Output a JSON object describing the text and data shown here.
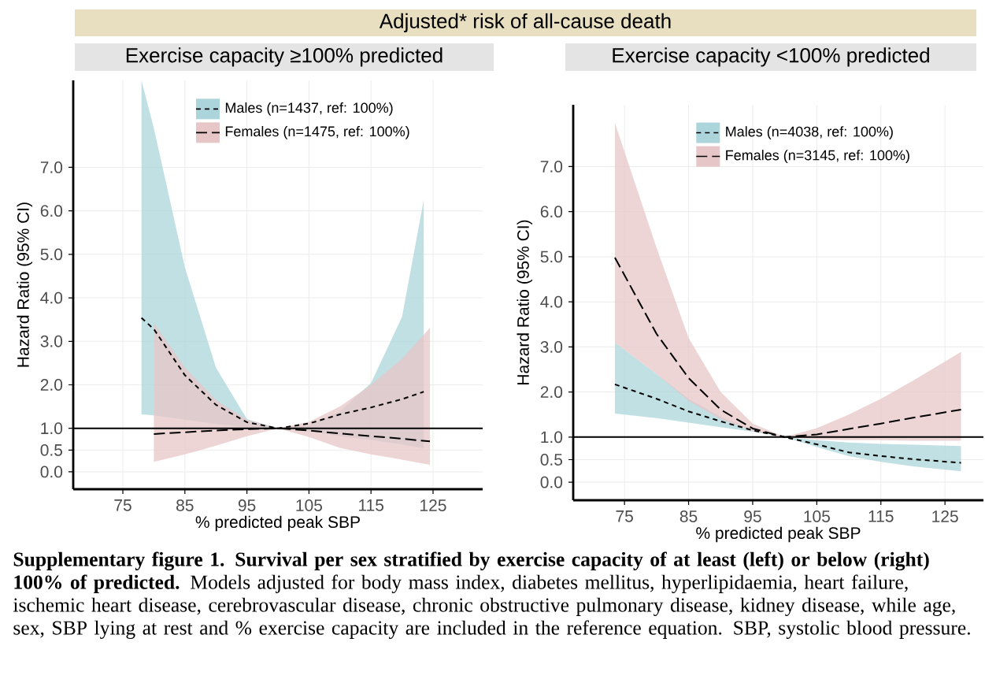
{
  "chart_data": [
    {
      "type": "line",
      "title": "Adjusted* risk of all-cause death",
      "subtitle": "Exercise capacity ≥100% predicted",
      "xlabel": "% predicted peak SBP",
      "ylabel": "Hazard Ratio (95% CI)",
      "xlim": [
        67,
        133
      ],
      "ylim": [
        -0.4,
        9.0
      ],
      "xticks": [
        75,
        85,
        95,
        105,
        115,
        125
      ],
      "yticks": [
        {
          "value": 0,
          "label": "0.0"
        },
        {
          "value": 0.5,
          "label": "0.5"
        },
        {
          "value": 1,
          "label": "1.0"
        },
        {
          "value": 2,
          "label": "2.0"
        },
        {
          "value": 3,
          "label": "3.0"
        },
        {
          "value": 4,
          "label": "4.0"
        },
        {
          "value": 5,
          "label": "5.0"
        },
        {
          "value": 6,
          "label": "6.0"
        },
        {
          "value": 7,
          "label": "7.0"
        }
      ],
      "grid": true,
      "legend": "top",
      "ref_lines": [
        {
          "axis": "y",
          "value": 1
        }
      ],
      "colors": [
        "#acd5db",
        "#e7c6c7"
      ],
      "series": [
        {
          "name": "Males (n=1437, ref: 100%)",
          "color": "#000000",
          "line_style": "dotted",
          "x": [
            78,
            80,
            85,
            90,
            95,
            100,
            105,
            110,
            115,
            120,
            123.5
          ],
          "values": [
            3.54,
            3.28,
            2.22,
            1.54,
            1.14,
            1.0,
            1.11,
            1.32,
            1.48,
            1.67,
            1.84
          ],
          "upper": [
            9.0,
            7.9,
            4.7,
            2.4,
            1.21,
            1.0,
            1.07,
            1.39,
            2.04,
            3.56,
            6.25
          ],
          "lower": [
            1.32,
            1.3,
            1.2,
            1.1,
            1.02,
            1.0,
            0.93,
            0.82,
            0.73,
            0.63,
            0.54
          ]
        },
        {
          "name": "Females (n=1475, ref: 100%)",
          "color": "#000000",
          "line_style": "dashed",
          "x": [
            80,
            85,
            90,
            95,
            100,
            105,
            110,
            115,
            120,
            124.5
          ],
          "values": [
            0.87,
            0.91,
            0.95,
            0.98,
            1.0,
            0.95,
            0.88,
            0.82,
            0.76,
            0.7
          ],
          "upper": [
            3.42,
            2.4,
            1.65,
            1.2,
            1.0,
            1.15,
            1.5,
            2.0,
            2.6,
            3.31
          ],
          "lower": [
            0.23,
            0.4,
            0.6,
            0.82,
            1.0,
            0.8,
            0.55,
            0.4,
            0.28,
            0.16
          ]
        }
      ],
      "annotations": [
        "**Supplementary figure 1. Survival per sex stratified by exercise capacity of at least (left) or below (right) 100% of predicted.** Models adjusted for body mass index, diabetes mellitus, hyperlipidaemia, heart failure, ischemic heart disease, cerebrovascular disease, chronic obstructive pulmonary disease, kidney disease, while age, sex, SBP lying at rest and % exercise capacity are included in the reference equation. SBP, systolic blood pressure."
      ]
    },
    {
      "type": "line",
      "subtitle": "Exercise capacity <100% predicted",
      "xlabel": "% predicted peak SBP",
      "ylabel": "Hazard Ratio (95% CI)",
      "xlim": [
        67,
        131
      ],
      "ylim": [
        -0.4,
        8.37
      ],
      "xticks": [
        75,
        85,
        95,
        105,
        115,
        125
      ],
      "yticks": [
        {
          "value": 0,
          "label": "0.0"
        },
        {
          "value": 0.5,
          "label": "0.5"
        },
        {
          "value": 1,
          "label": "1.0"
        },
        {
          "value": 2,
          "label": "2.0"
        },
        {
          "value": 3,
          "label": "3.0"
        },
        {
          "value": 4,
          "label": "4.0"
        },
        {
          "value": 5,
          "label": "5.0"
        },
        {
          "value": 6,
          "label": "6.0"
        },
        {
          "value": 7,
          "label": "7.0"
        }
      ],
      "grid": true,
      "legend": "top",
      "ref_lines": [
        {
          "axis": "y",
          "value": 1
        }
      ],
      "colors": [
        "#acd5db",
        "#e7c6c7"
      ],
      "series": [
        {
          "name": "Males (n=4038, ref: 100%)",
          "color": "#000000",
          "line_style": "dotted",
          "x": [
            73.5,
            80,
            85,
            90,
            95,
            100,
            105,
            110,
            115,
            120,
            127.5
          ],
          "values": [
            2.17,
            1.85,
            1.57,
            1.35,
            1.15,
            1.0,
            0.84,
            0.66,
            0.58,
            0.51,
            0.43
          ],
          "upper": [
            3.1,
            2.4,
            1.85,
            1.45,
            1.17,
            1.0,
            0.93,
            0.88,
            0.85,
            0.83,
            0.8
          ],
          "lower": [
            1.52,
            1.42,
            1.32,
            1.22,
            1.12,
            1.0,
            0.78,
            0.58,
            0.45,
            0.35,
            0.24
          ]
        },
        {
          "name": "Females (n=3145, ref: 100%)",
          "color": "#000000",
          "line_style": "dashed",
          "x": [
            73.5,
            80,
            85,
            90,
            95,
            100,
            105,
            110,
            115,
            120,
            127.5
          ],
          "values": [
            4.98,
            3.29,
            2.31,
            1.61,
            1.19,
            1.0,
            1.06,
            1.18,
            1.3,
            1.43,
            1.61
          ],
          "upper": [
            7.97,
            5.2,
            3.2,
            2.0,
            1.3,
            1.0,
            1.2,
            1.5,
            1.85,
            2.25,
            2.89
          ],
          "lower": [
            3.1,
            2.4,
            1.8,
            1.4,
            1.13,
            1.0,
            0.95,
            0.93,
            0.93,
            0.92,
            0.92
          ]
        }
      ]
    }
  ]
}
